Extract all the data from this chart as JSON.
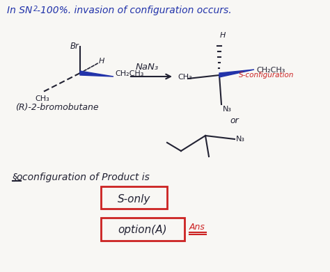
{
  "background_color": "#f8f7f4",
  "font_color_blue": "#2233aa",
  "font_color_red": "#cc2222",
  "font_color_black": "#222233",
  "title_parts": [
    "In SN",
    "2",
    "- 100%. invasion of configuration occurs."
  ],
  "reagent": "NaN₃",
  "label_R": "(R)-2-bromobutane",
  "label_S_config": "S-configuration",
  "label_OR": "or",
  "label_so": "configuration of Product is",
  "label_s_only": "S-only",
  "label_option": "option(A)",
  "label_ans": "Ans"
}
